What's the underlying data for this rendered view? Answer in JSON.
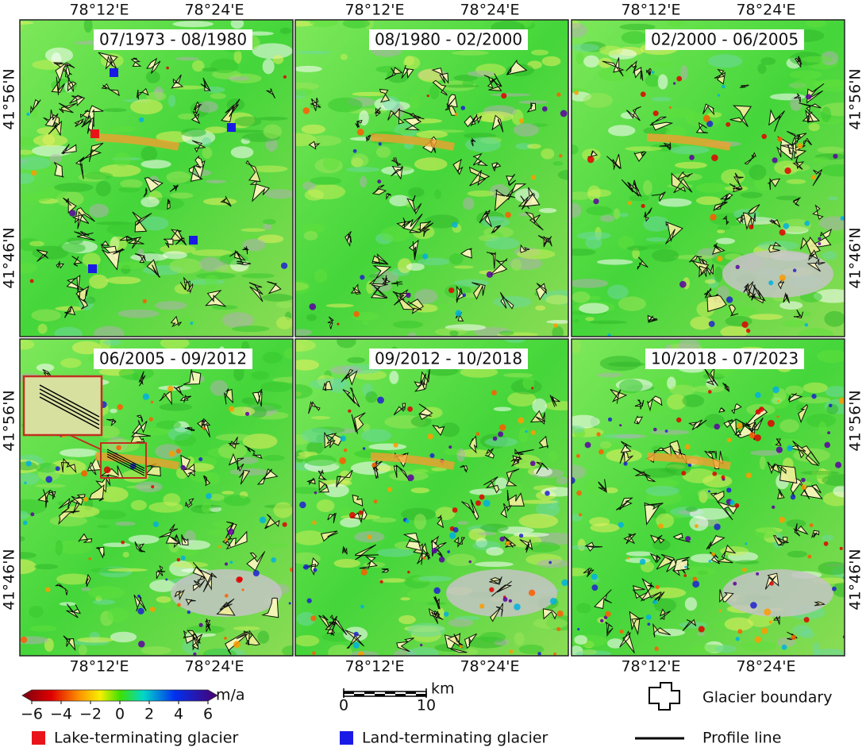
{
  "panels": [
    {
      "title": "07/1973 - 08/1980"
    },
    {
      "title": "08/1980 - 02/2000"
    },
    {
      "title": "02/2000 - 06/2005"
    },
    {
      "title": "06/2005 - 09/2012"
    },
    {
      "title": "09/2012 - 10/2018"
    },
    {
      "title": "10/2018 - 07/2023"
    }
  ],
  "axes": {
    "lon_labels": [
      "78°12'E",
      "78°24'E"
    ],
    "lat_labels": [
      "41°56'N",
      "41°46'N"
    ]
  },
  "colorbar": {
    "unit": "m/a",
    "range": [
      -6,
      6
    ],
    "ticks": [
      {
        "value": -6,
        "label": "−6"
      },
      {
        "value": -4,
        "label": "−4"
      },
      {
        "value": -2,
        "label": "−2"
      },
      0,
      2,
      4,
      6
    ]
  },
  "scale_bar": {
    "unit": "km",
    "range": [
      0,
      10
    ],
    "ticks": [
      0,
      10
    ]
  },
  "legend": {
    "glacier_boundary": "Glacier boundary",
    "lake_terminating": "Lake-terminating glacier",
    "land_terminating": "Land-terminating glacier",
    "profile_line": "Profile line"
  }
}
